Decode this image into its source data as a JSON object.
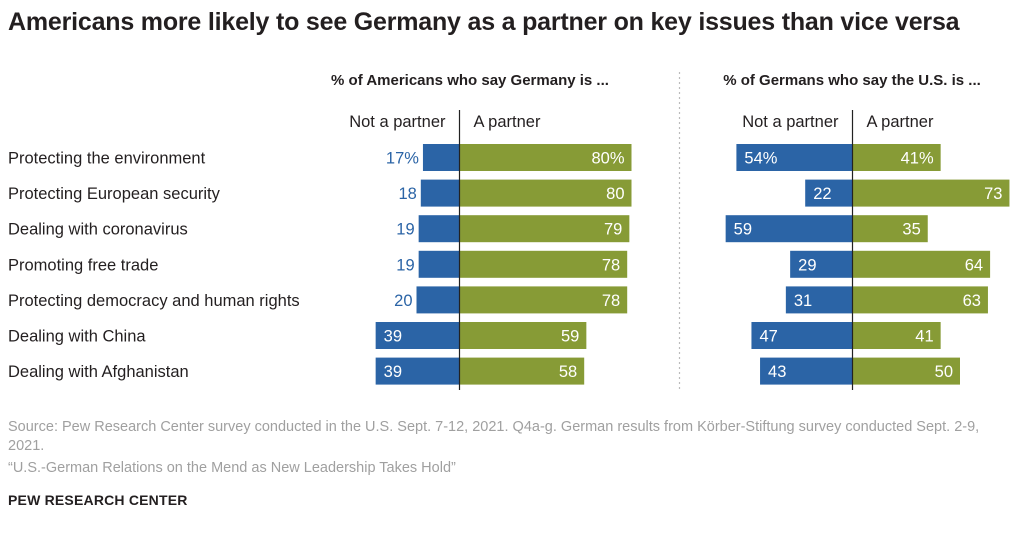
{
  "title": "Americans more likely to see Germany as a partner on key issues than vice versa",
  "source": "Source: Pew Research Center survey conducted in the U.S. Sept. 7-12, 2021. Q4a-g. German results from Körber-Stiftung survey conducted Sept. 2-9, 2021.",
  "report": "“U.S.-German Relations on the Mend as New Leadership Takes Hold”",
  "brand": "PEW RESEARCH CENTER",
  "colors": {
    "not_partner": "#2b64a6",
    "partner": "#879b36",
    "axis": "#222222",
    "divider": "#bbbbbb"
  },
  "chart_data": [
    {
      "type": "bar",
      "orientation": "diverging-horizontal",
      "title": "% of Americans who say Germany is ...",
      "categories": [
        "Protecting the environment",
        "Protecting European security",
        "Dealing with coronavirus",
        "Promoting free trade",
        "Protecting democracy and human rights",
        "Dealing with China",
        "Dealing with Afghanistan"
      ],
      "series": [
        {
          "name": "Not a partner",
          "values": [
            17,
            18,
            19,
            19,
            20,
            39,
            39
          ],
          "labels": [
            "17%",
            "18",
            "19",
            "19",
            "20",
            "39",
            "39"
          ]
        },
        {
          "name": "A partner",
          "values": [
            80,
            80,
            79,
            78,
            78,
            59,
            58
          ],
          "labels": [
            "80%",
            "80",
            "79",
            "78",
            "78",
            "59",
            "58"
          ]
        }
      ]
    },
    {
      "type": "bar",
      "orientation": "diverging-horizontal",
      "title": "% of Germans who say the U.S. is ...",
      "categories": [
        "Protecting the environment",
        "Protecting European security",
        "Dealing with coronavirus",
        "Promoting free trade",
        "Protecting democracy and human rights",
        "Dealing with China",
        "Dealing with Afghanistan"
      ],
      "series": [
        {
          "name": "Not a partner",
          "values": [
            54,
            22,
            59,
            29,
            31,
            47,
            43
          ],
          "labels": [
            "54%",
            "22",
            "59",
            "29",
            "31",
            "47",
            "43"
          ]
        },
        {
          "name": "A partner",
          "values": [
            41,
            73,
            35,
            64,
            63,
            41,
            50
          ],
          "labels": [
            "41%",
            "73",
            "35",
            "64",
            "63",
            "41",
            "50"
          ]
        }
      ]
    }
  ]
}
